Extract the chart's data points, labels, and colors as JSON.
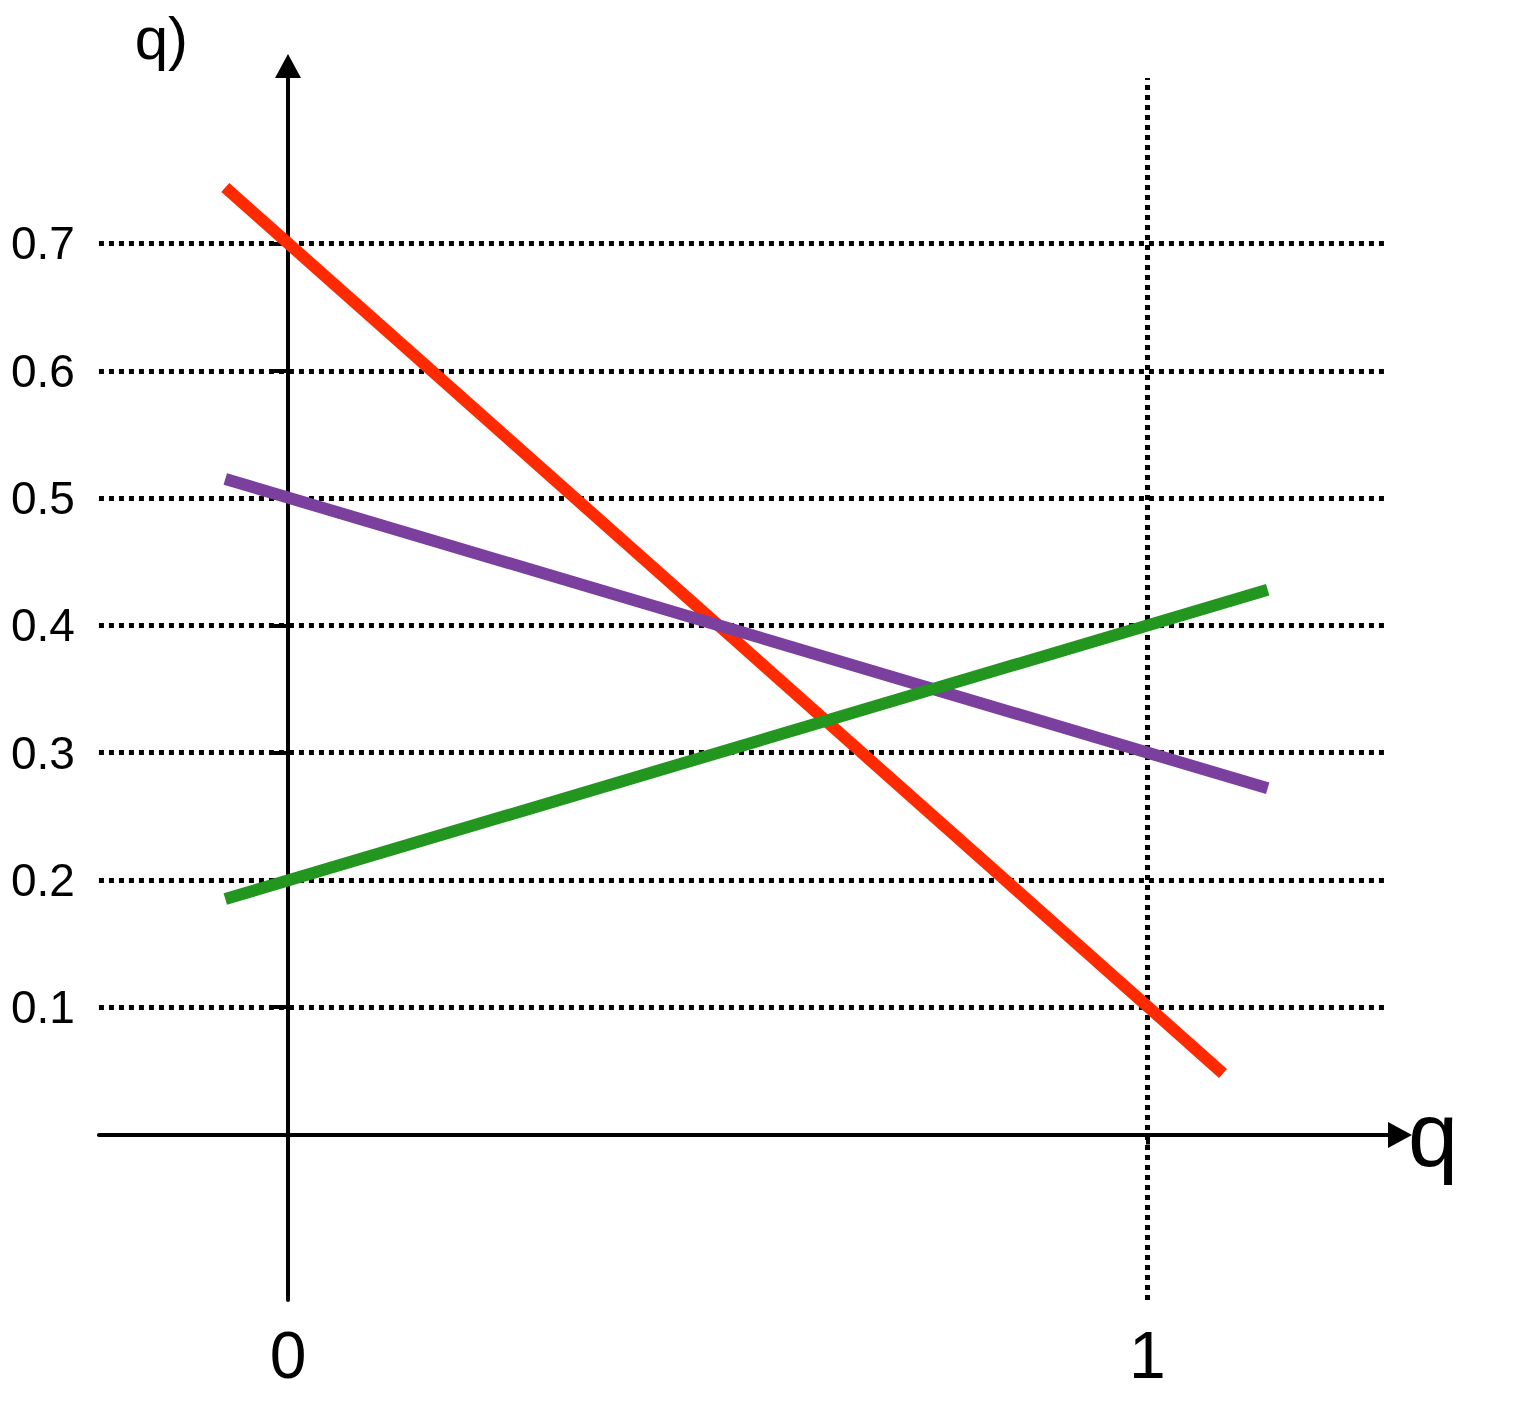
{
  "chart_data": {
    "type": "line",
    "xlabel": "q",
    "ylabel": "q)",
    "series": [
      {
        "color": "#ff2a00",
        "x": [
          -0.073,
          1.088
        ],
        "values": [
          0.744,
          0.048
        ]
      },
      {
        "color": "#7b3f9e",
        "x": [
          -0.073,
          1.14
        ],
        "values": [
          0.515,
          0.272
        ]
      },
      {
        "color": "#22961f",
        "x": [
          -0.073,
          1.14
        ],
        "values": [
          0.185,
          0.428
        ]
      }
    ],
    "xlim": [
      -0.22,
      1.28
    ],
    "ylim": [
      -0.13,
      0.83
    ],
    "xticks": [
      0,
      1
    ],
    "yticks": [
      0.1,
      0.2,
      0.3,
      0.4,
      0.5,
      0.6,
      0.7
    ],
    "grid": "y",
    "ref_lines": [
      {
        "axis": "x",
        "value": 1,
        "line_style": "dotted"
      }
    ],
    "line_style": "solid"
  }
}
